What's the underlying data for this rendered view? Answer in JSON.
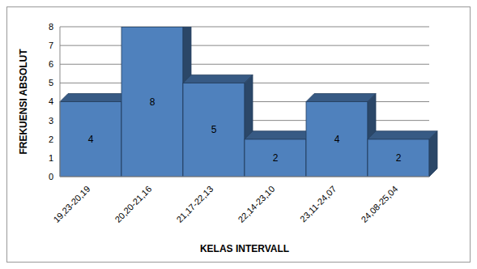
{
  "chart_data": {
    "type": "bar",
    "categories": [
      "19,23-20,19",
      "20,20-21,16",
      "21,17-22,13",
      "22,14-23,10",
      "23,11-24,07",
      "24,08-25,04"
    ],
    "values": [
      4,
      8,
      5,
      2,
      4,
      2
    ],
    "color": "#4f81bd",
    "xlabel": "KELAS INTERVALL",
    "ylabel": "FREKUENSI ABSOLUT",
    "ylim": [
      0,
      8
    ],
    "yticks": [
      0,
      1,
      2,
      3,
      4,
      5,
      6,
      7,
      8
    ],
    "grid": true,
    "data_labels": true
  }
}
